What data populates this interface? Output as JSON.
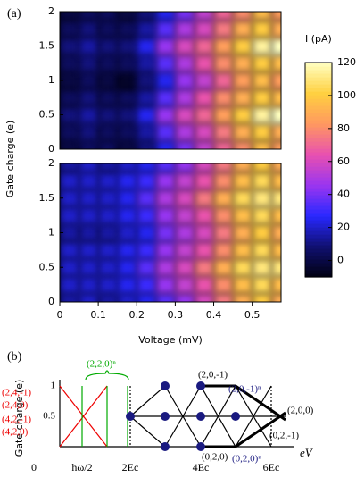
{
  "chart_data": [
    {
      "type": "heatmap",
      "label": "(a)",
      "ylabel": "Gate charge (e)",
      "x": [
        0.025,
        0.075,
        0.125,
        0.175,
        0.225,
        0.275,
        0.325,
        0.375,
        0.425,
        0.475,
        0.525,
        0.575
      ],
      "y": [
        0,
        0.25,
        0.5,
        0.75,
        1,
        1.25,
        1.5,
        1.75,
        2
      ],
      "z": [
        [
          0,
          5,
          5,
          0,
          10,
          25,
          40,
          55,
          70,
          80,
          95,
          85
        ],
        [
          5,
          10,
          5,
          5,
          15,
          35,
          50,
          60,
          75,
          90,
          100,
          90
        ],
        [
          10,
          15,
          10,
          10,
          25,
          45,
          60,
          70,
          85,
          100,
          115,
          120
        ],
        [
          5,
          10,
          5,
          5,
          15,
          35,
          50,
          65,
          80,
          90,
          100,
          95
        ],
        [
          0,
          5,
          0,
          -5,
          10,
          25,
          45,
          55,
          70,
          85,
          95,
          85
        ],
        [
          5,
          10,
          5,
          5,
          15,
          35,
          50,
          65,
          80,
          90,
          100,
          95
        ],
        [
          10,
          15,
          10,
          10,
          25,
          45,
          60,
          70,
          85,
          100,
          115,
          120
        ],
        [
          5,
          10,
          5,
          5,
          15,
          35,
          50,
          60,
          75,
          90,
          100,
          90
        ],
        [
          0,
          5,
          5,
          0,
          10,
          25,
          40,
          55,
          70,
          80,
          95,
          85
        ]
      ],
      "xlim": [
        0,
        0.575
      ],
      "ylim": [
        0,
        2
      ],
      "yticks": [
        0,
        0.5,
        1,
        1.5,
        2
      ],
      "colorbar": {
        "label": "I (pA)",
        "lim": [
          -10,
          120
        ],
        "ticks": [
          0,
          20,
          40,
          60,
          80,
          100,
          120
        ]
      },
      "colormap": [
        "#000010",
        "#101070",
        "#2828ff",
        "#9a35f0",
        "#e850b0",
        "#ff9860",
        "#ffd040",
        "#ffffc0"
      ]
    },
    {
      "type": "heatmap",
      "xlabel": "Voltage (mV)",
      "x": [
        0.025,
        0.075,
        0.125,
        0.175,
        0.225,
        0.275,
        0.325,
        0.375,
        0.425,
        0.475,
        0.525,
        0.575
      ],
      "y": [
        0,
        0.25,
        0.5,
        0.75,
        1,
        1.25,
        1.5,
        1.75,
        2
      ],
      "z": [
        [
          15,
          20,
          15,
          20,
          25,
          35,
          45,
          60,
          75,
          90,
          100,
          90
        ],
        [
          20,
          20,
          20,
          25,
          30,
          45,
          55,
          65,
          80,
          95,
          105,
          95
        ],
        [
          20,
          20,
          20,
          25,
          35,
          50,
          60,
          75,
          90,
          105,
          110,
          110
        ],
        [
          20,
          20,
          20,
          25,
          30,
          45,
          55,
          65,
          80,
          95,
          105,
          95
        ],
        [
          15,
          15,
          15,
          20,
          25,
          40,
          50,
          60,
          75,
          90,
          100,
          90
        ],
        [
          20,
          20,
          20,
          25,
          30,
          45,
          55,
          65,
          80,
          95,
          105,
          95
        ],
        [
          20,
          20,
          20,
          25,
          35,
          50,
          60,
          75,
          90,
          105,
          110,
          110
        ],
        [
          20,
          20,
          20,
          25,
          30,
          45,
          55,
          65,
          80,
          95,
          105,
          95
        ],
        [
          15,
          20,
          15,
          20,
          25,
          35,
          45,
          60,
          75,
          90,
          100,
          90
        ]
      ],
      "xlim": [
        0,
        0.575
      ],
      "ylim": [
        0,
        2
      ],
      "yticks": [
        0,
        0.5,
        1,
        1.5,
        2
      ],
      "xticks": [
        0,
        0.1,
        0.2,
        0.3,
        0.4,
        0.5
      ]
    }
  ],
  "diagram": {
    "label": "(b)",
    "ylabel": "Gate charge (e)",
    "yticks": [
      "1",
      "0.5"
    ],
    "xlabel": "eV",
    "labels": [
      "(2,4,-1)",
      "(2,4,0)",
      "(4,2,-1)",
      "(4,2,0)",
      "(2,2,0)ⁿ",
      "(2,0,-1)",
      "(2,0,-1)ⁿ",
      "(2,0,0)",
      "(0,2,-1)",
      "(0,2,0)",
      "(0,2,0)ⁿ"
    ],
    "xticks": [
      "0",
      "ħω/2",
      "2Ec",
      "4Ec",
      "6Ec"
    ]
  }
}
